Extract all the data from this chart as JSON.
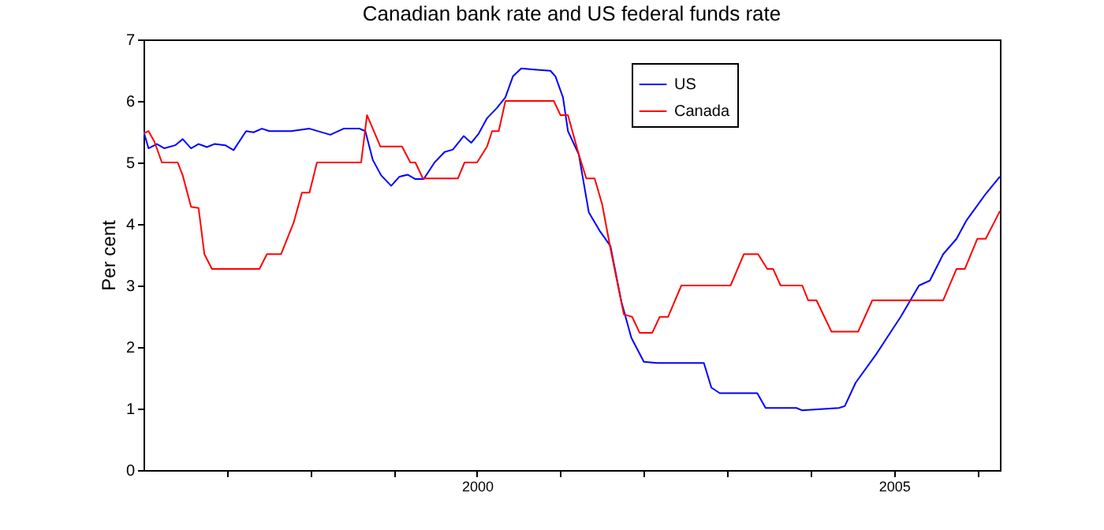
{
  "chart_data": {
    "type": "line",
    "title": "Canadian bank rate and US federal funds rate",
    "ylabel": "Per cent",
    "xlim": [
      1996,
      2006.27
    ],
    "ylim": [
      0,
      7
    ],
    "xticks": [
      {
        "value": 1997,
        "label": null
      },
      {
        "value": 1998,
        "label": null
      },
      {
        "value": 1999,
        "label": null
      },
      2000,
      {
        "value": 2001,
        "label": null
      },
      {
        "value": 2002,
        "label": null
      },
      {
        "value": 2003,
        "label": null
      },
      {
        "value": 2004,
        "label": null
      },
      2005,
      {
        "value": 2006,
        "label": null
      }
    ],
    "yticks": [
      0,
      1,
      2,
      3,
      4,
      5,
      6,
      7
    ],
    "grid": false,
    "legend": "top right",
    "marker": "none",
    "line_style": "solid",
    "series": [
      {
        "name": "US",
        "color": "#0000ff",
        "x": [
          1996.0,
          1996.06,
          1996.16,
          1996.25,
          1996.38,
          1996.47,
          1996.57,
          1996.66,
          1996.76,
          1996.85,
          1996.98,
          1997.08,
          1997.23,
          1997.32,
          1997.42,
          1997.51,
          1997.77,
          1997.99,
          1998.24,
          1998.4,
          1998.59,
          1998.66,
          1998.75,
          1998.85,
          1998.97,
          1999.07,
          1999.17,
          1999.26,
          1999.36,
          1999.49,
          1999.61,
          1999.71,
          1999.84,
          1999.93,
          2000.02,
          2000.12,
          2000.24,
          2000.34,
          2000.43,
          2000.53,
          2000.69,
          2000.88,
          2000.94,
          2001.03,
          2001.09,
          2001.22,
          2001.34,
          2001.47,
          2001.6,
          2001.73,
          2001.85,
          2002.0,
          2002.16,
          2002.47,
          2002.72,
          2002.81,
          2002.91,
          2003.36,
          2003.46,
          2003.83,
          2003.9,
          2004.34,
          2004.41,
          2004.54,
          2004.79,
          2004.92,
          2005.08,
          2005.3,
          2005.43,
          2005.59,
          2005.75,
          2005.87,
          2006.1,
          2006.27
        ],
        "values": [
          5.51,
          5.23,
          5.3,
          5.23,
          5.28,
          5.38,
          5.23,
          5.3,
          5.25,
          5.3,
          5.28,
          5.2,
          5.51,
          5.49,
          5.55,
          5.51,
          5.51,
          5.55,
          5.45,
          5.55,
          5.55,
          5.51,
          5.04,
          4.79,
          4.62,
          4.77,
          4.8,
          4.73,
          4.73,
          5.0,
          5.17,
          5.21,
          5.43,
          5.32,
          5.47,
          5.72,
          5.89,
          6.06,
          6.4,
          6.53,
          6.51,
          6.49,
          6.4,
          6.06,
          5.51,
          5.13,
          4.19,
          3.89,
          3.64,
          2.74,
          2.15,
          1.76,
          1.74,
          1.74,
          1.74,
          1.34,
          1.25,
          1.25,
          1.01,
          1.01,
          0.97,
          1.01,
          1.04,
          1.42,
          1.89,
          2.16,
          2.49,
          3.0,
          3.08,
          3.51,
          3.76,
          4.06,
          4.49,
          4.77
        ]
      },
      {
        "name": "Canada",
        "color": "#ff0000",
        "x": [
          1996.0,
          1996.06,
          1996.13,
          1996.22,
          1996.41,
          1996.47,
          1996.57,
          1996.66,
          1996.73,
          1996.82,
          1997.39,
          1997.48,
          1997.65,
          1997.8,
          1997.9,
          1997.99,
          1998.08,
          1998.61,
          1998.68,
          1998.84,
          1999.1,
          1999.2,
          1999.26,
          1999.35,
          1999.77,
          1999.85,
          2000.0,
          2000.12,
          2000.18,
          2000.26,
          2000.34,
          2000.92,
          2001.0,
          2001.09,
          2001.22,
          2001.31,
          2001.41,
          2001.5,
          2001.6,
          2001.76,
          2001.86,
          2001.95,
          2002.1,
          2002.19,
          2002.29,
          2002.45,
          2003.04,
          2003.2,
          2003.37,
          2003.48,
          2003.55,
          2003.64,
          2003.9,
          2003.97,
          2004.07,
          2004.25,
          2004.57,
          2004.74,
          2005.59,
          2005.75,
          2005.85,
          2006.0,
          2006.1,
          2006.27
        ],
        "values": [
          5.47,
          5.51,
          5.34,
          5.0,
          5.0,
          4.79,
          4.28,
          4.26,
          3.51,
          3.27,
          3.27,
          3.51,
          3.51,
          4.02,
          4.51,
          4.51,
          5.0,
          5.0,
          5.77,
          5.26,
          5.26,
          5.0,
          5.0,
          4.74,
          4.74,
          5.0,
          5.0,
          5.26,
          5.51,
          5.51,
          6.0,
          6.0,
          5.77,
          5.77,
          5.13,
          4.74,
          4.74,
          4.32,
          3.6,
          2.53,
          2.49,
          2.23,
          2.23,
          2.49,
          2.49,
          3.0,
          3.0,
          3.51,
          3.51,
          3.27,
          3.27,
          3.0,
          3.0,
          2.76,
          2.76,
          2.25,
          2.25,
          2.76,
          2.76,
          3.27,
          3.27,
          3.76,
          3.76,
          4.21
        ]
      }
    ]
  }
}
